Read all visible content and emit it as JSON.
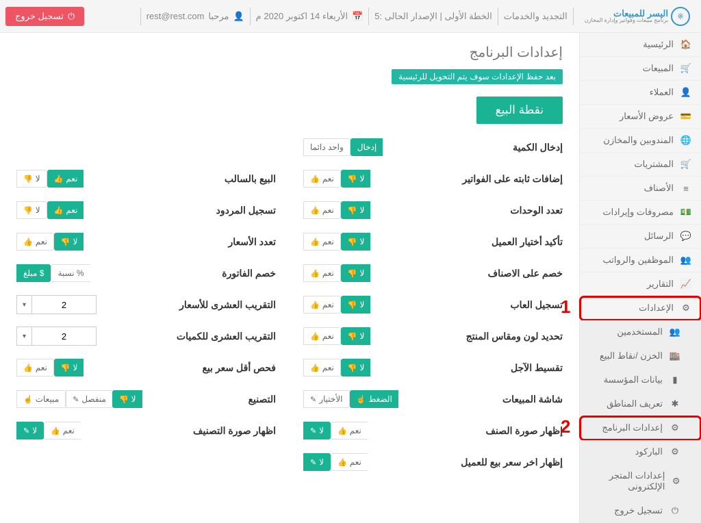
{
  "brand": {
    "name": "اليسر للمبيعات",
    "sub": "برنامج مبيعات وفواتير وإدارة المخازن"
  },
  "top": {
    "renew": "التجديد والخدمات",
    "plan": "الخطة الأولى | الإصدار الحالى :5",
    "date": "الأربعاء 14 اكتوبر 2020 م",
    "hello": "مرحبا",
    "email": "rest@rest.com",
    "logout": "تسجيل خروج"
  },
  "sidebar": [
    {
      "icon": "🏠",
      "label": "الرئيسية"
    },
    {
      "icon": "🛒",
      "label": "المبيعات"
    },
    {
      "icon": "👤",
      "label": "العملاء"
    },
    {
      "icon": "💳",
      "label": "عروض الأسعار"
    },
    {
      "icon": "🌐",
      "label": "المندوبين والمخازن"
    },
    {
      "icon": "🛒",
      "label": "المشتريات"
    },
    {
      "icon": "≡",
      "label": "الأصناف"
    },
    {
      "icon": "💵",
      "label": "مصروفات وإيرادات"
    },
    {
      "icon": "💬",
      "label": "الرسائل"
    },
    {
      "icon": "👥",
      "label": "الموظفين والرواتب"
    },
    {
      "icon": "📈",
      "label": "التقارير"
    },
    {
      "icon": "⚙",
      "label": "الإعدادات",
      "hl": true,
      "annot": "1"
    },
    {
      "icon": "👥",
      "label": "المستخدمين",
      "sub": true
    },
    {
      "icon": "🏬",
      "label": "الخزن /نقاط البيع",
      "sub": true
    },
    {
      "icon": "▮",
      "label": "بيانات المؤسسة",
      "sub": true
    },
    {
      "icon": "✱",
      "label": "تعريف المناطق",
      "sub": true
    },
    {
      "icon": "⚙",
      "label": "إعدادات البرنامج",
      "sub": true,
      "hl": true,
      "annot": "2"
    },
    {
      "icon": "⚙",
      "label": "الباركود",
      "sub": true
    },
    {
      "icon": "⚙",
      "label": "إعدادات المتجر الإلكترونى",
      "sub": true
    },
    {
      "icon": "⏻",
      "label": "تسجيل خروج",
      "sub": true
    }
  ],
  "page": {
    "title": "إعدادات البرنامج",
    "alert": "بعد حفظ الإعدادات سوف يتم التحويل للرئيسية",
    "section": "نقطة البيع"
  },
  "labels": {
    "qty": "إدخال الكمية",
    "fixed": "إضافات ثابته على الفواتير",
    "units": "تعدد الوحدات",
    "confirm": "تأكيد أختيار العميل",
    "itemdisc": "خصم على الاصناف",
    "games": "تسجيل العاب",
    "colorsize": "تحديد لون ومقاس المنتج",
    "install": "تقسيط الآجل",
    "screen": "شاشة المبيعات",
    "itemimg": "إظهار صورة الصنف",
    "lastprice": "إظهار اخر سعر بيع للعميل",
    "neg": "البيع بالسالب",
    "returns": "تسجيل المردود",
    "multiprice": "تعدد الأسعار",
    "invdisc": "خصم الفاتورة",
    "rndprice": "التقريب العشرى للأسعار",
    "rndqty": "التقريب العشرى للكميات",
    "minprice": "فحص أقل سعر بيع",
    "mfg": "التصنيع",
    "catimg": "اظهار صورة التصنيف"
  },
  "chips": {
    "input": "إدخال",
    "always": "واحد دائما",
    "yes": "نعم",
    "no": "لا",
    "pct": "نسبة %",
    "amt": "مبلغ $",
    "press": "الضغط",
    "choice": "الأختيار",
    "sep": "منفصل",
    "sales": "مبيعات"
  },
  "nums": {
    "rndprice": "2",
    "rndqty": "2"
  }
}
